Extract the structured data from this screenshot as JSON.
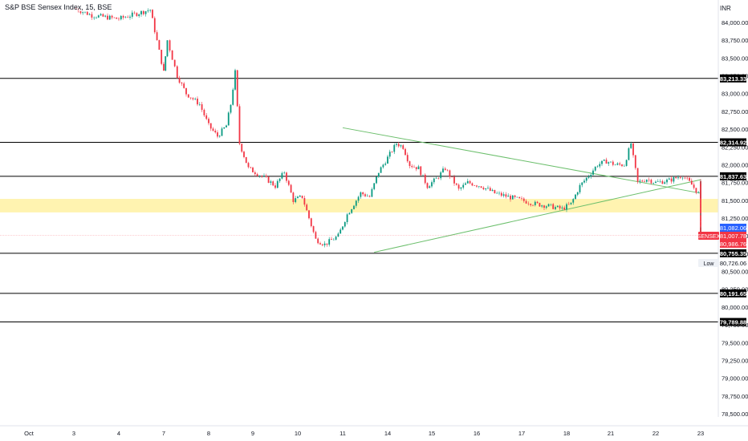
{
  "header": {
    "title": "S&P BSE Sensex Index, 15, BSE",
    "currency": "INR"
  },
  "chart_data": {
    "type": "candlestick",
    "title": "S&P BSE Sensex Index, 15, BSE",
    "ylim": [
      78200,
      84250
    ],
    "y_ticks": [
      78500,
      78750,
      79000,
      79250,
      79500,
      79750,
      80000,
      80250,
      80500,
      80750,
      81000,
      81250,
      81500,
      81750,
      82000,
      82250,
      82500,
      82750,
      83000,
      83250,
      83500,
      83750,
      84000
    ],
    "y_tick_labels": [
      "78,500.00",
      "78,750.00",
      "79,000.00",
      "79,250.00",
      "79,500.00",
      "79,750.00",
      "80,000.00",
      "80,250.00",
      "80,500.00",
      "80,750.00",
      "81,000.00",
      "81,250.00",
      "81,500.00",
      "81,750.00",
      "82,000.00",
      "82,250.00",
      "82,500.00",
      "82,750.00",
      "83,000.00",
      "83,250.00",
      "83,500.00",
      "83,750.00",
      "84,000.00"
    ],
    "x_labels": [
      "Oct",
      "3",
      "4",
      "7",
      "8",
      "9",
      "10",
      "11",
      "14",
      "15",
      "16",
      "17",
      "18",
      "21",
      "22",
      "23"
    ],
    "horizontal_levels": [
      {
        "value": 83213.33,
        "label": "83,213.33"
      },
      {
        "value": 82314.92,
        "label": "82,314.92"
      },
      {
        "value": 81837.63,
        "label": "81,837.63"
      },
      {
        "value": 80755.35,
        "label": "80,755.35"
      },
      {
        "value": 80191.65,
        "label": "80,191.65"
      },
      {
        "value": 79789.88,
        "label": "79,789.88"
      }
    ],
    "zone": {
      "from": 81330,
      "to": 81520,
      "color": "#fff3b0"
    },
    "trendlines": [
      {
        "from": [
          7,
          82520
        ],
        "to": [
          21.8,
          81600
        ],
        "color": "#6cbf6c"
      },
      {
        "from": [
          7.7,
          80770
        ],
        "to": [
          17.4,
          81790
        ],
        "color": "#6cbf6c"
      }
    ],
    "price_labels": [
      {
        "value": 81082.06,
        "label": "81,082.06",
        "bg": "#2962ff",
        "fg": "#ffffff"
      },
      {
        "value": 81007.78,
        "label": "81,007.78",
        "bg": "#f23645",
        "fg": "#ffffff",
        "tag": "SENSEX"
      },
      {
        "value": 80986.76,
        "label": "80,986.76",
        "bg": "#f23645",
        "fg": "#ffffff"
      },
      {
        "value": 80726.06,
        "label": "80,726.06",
        "bg": "#ffffff",
        "fg": "#131722",
        "tag": "Low"
      }
    ],
    "last_price": 81007.78,
    "up_color": "#089981",
    "down_color": "#f23645",
    "level_color": "#000000",
    "path": [
      [
        1.0,
        84200
      ],
      [
        1.4,
        84100
      ],
      [
        2.0,
        84050
      ],
      [
        2.7,
        84180
      ],
      [
        3.0,
        83300
      ],
      [
        3.08,
        83750
      ],
      [
        3.3,
        83250
      ],
      [
        3.5,
        83000
      ],
      [
        3.8,
        82850
      ],
      [
        4.0,
        82550
      ],
      [
        4.2,
        82400
      ],
      [
        4.4,
        82550
      ],
      [
        4.5,
        82850
      ],
      [
        4.6,
        83300
      ],
      [
        4.7,
        82300
      ],
      [
        4.9,
        81950
      ],
      [
        5.3,
        81800
      ],
      [
        5.5,
        81700
      ],
      [
        5.7,
        81900
      ],
      [
        5.9,
        81500
      ],
      [
        6.1,
        81550
      ],
      [
        6.4,
        80950
      ],
      [
        6.6,
        80880
      ],
      [
        6.9,
        81000
      ],
      [
        7.1,
        81300
      ],
      [
        7.4,
        81600
      ],
      [
        7.6,
        81550
      ],
      [
        7.8,
        81900
      ],
      [
        8.0,
        82100
      ],
      [
        8.2,
        82300
      ],
      [
        8.35,
        82250
      ],
      [
        8.5,
        82000
      ],
      [
        8.7,
        81950
      ],
      [
        8.9,
        81700
      ],
      [
        9.1,
        81800
      ],
      [
        9.3,
        81950
      ],
      [
        9.6,
        81650
      ],
      [
        9.8,
        81750
      ],
      [
        10.1,
        81700
      ],
      [
        10.4,
        81600
      ],
      [
        10.7,
        81550
      ],
      [
        11.0,
        81500
      ],
      [
        11.3,
        81450
      ],
      [
        11.6,
        81420
      ],
      [
        11.9,
        81380
      ],
      [
        12.1,
        81450
      ],
      [
        12.3,
        81700
      ],
      [
        12.5,
        81850
      ],
      [
        12.7,
        82000
      ],
      [
        12.9,
        82050
      ],
      [
        13.1,
        82000
      ],
      [
        13.3,
        82000
      ],
      [
        13.45,
        82300
      ],
      [
        13.5,
        82100
      ],
      [
        13.6,
        81750
      ],
      [
        13.8,
        81800
      ],
      [
        14.0,
        81750
      ],
      [
        14.3,
        81780
      ],
      [
        14.6,
        81850
      ],
      [
        14.8,
        81720
      ],
      [
        15.0,
        81550
      ],
      [
        15.3,
        81600
      ],
      [
        15.6,
        81750
      ],
      [
        15.75,
        81700
      ],
      [
        15.9,
        81450
      ],
      [
        16.1,
        81200
      ],
      [
        16.3,
        81100
      ],
      [
        16.6,
        81050
      ],
      [
        16.9,
        81030
      ],
      [
        17.2,
        80980
      ],
      [
        17.4,
        81010
      ]
    ]
  }
}
